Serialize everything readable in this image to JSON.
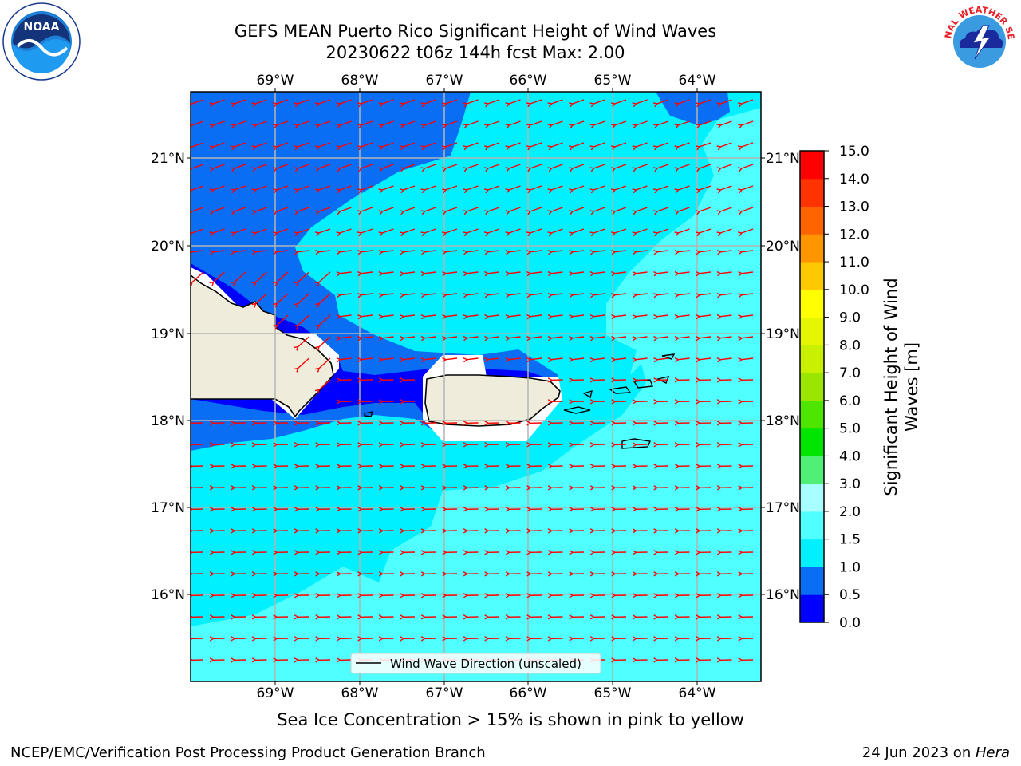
{
  "header": {
    "title_line1": "GEFS MEAN Puerto Rico Significant Height of Wind Waves",
    "title_line2": "20230622 t06z 144h fcst   Max: 2.00"
  },
  "logos": {
    "left": "NOAA",
    "left_ring_text": "NATIONAL OCEANIC AND ATMOSPHERIC ADMINISTRATION · U.S. DEPARTMENT OF COMMERCE",
    "right_ring_text": "NATIONAL WEATHER SERVICE"
  },
  "map": {
    "lon_labels": [
      "69°W",
      "68°W",
      "67°W",
      "66°W",
      "65°W",
      "64°W"
    ],
    "lat_labels": [
      "21°N",
      "20°N",
      "19°N",
      "18°N",
      "17°N",
      "16°N"
    ],
    "legend_label": "Wind Wave Direction (unscaled)",
    "arrow_color": "#ff0000",
    "land_color": "#efecdc"
  },
  "colorbar": {
    "label_line1": "Significant Height of Wind",
    "label_line2": "Waves [m]",
    "ticks": [
      "0.0",
      "0.5",
      "1.0",
      "1.5",
      "2.0",
      "3.0",
      "4.0",
      "5.0",
      "6.0",
      "7.0",
      "8.0",
      "9.0",
      "10.0",
      "11.0",
      "12.0",
      "13.0",
      "14.0",
      "15.0"
    ],
    "colors": [
      "#0000ff",
      "#0a6ef5",
      "#00f0ff",
      "#50ffff",
      "#a8ffff",
      "#50f078",
      "#00e600",
      "#4ee600",
      "#9be600",
      "#c8f000",
      "#e6f500",
      "#ffff00",
      "#ffc800",
      "#ff9600",
      "#ff6400",
      "#ff3200",
      "#ff0000"
    ]
  },
  "footer": {
    "ice_note": "Sea Ice Concentration > 15% is shown in pink to yellow",
    "branch": "NCEP/EMC/Verification Post Processing Product Generation Branch",
    "date": "24 Jun 2023 on ",
    "machine": "Hera"
  }
}
